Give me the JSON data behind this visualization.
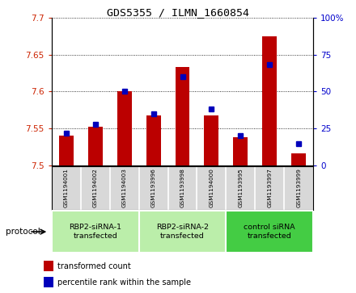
{
  "title": "GDS5355 / ILMN_1660854",
  "samples": [
    "GSM1194001",
    "GSM1194002",
    "GSM1194003",
    "GSM1193996",
    "GSM1193998",
    "GSM1194000",
    "GSM1193995",
    "GSM1193997",
    "GSM1193999"
  ],
  "red_values": [
    7.541,
    7.553,
    7.601,
    7.568,
    7.633,
    7.568,
    7.538,
    7.675,
    7.516
  ],
  "blue_values_pct": [
    22,
    28,
    50,
    35,
    60,
    38,
    20,
    68,
    15
  ],
  "ylim_left": [
    7.5,
    7.7
  ],
  "ylim_right": [
    0,
    100
  ],
  "yticks_left": [
    7.5,
    7.55,
    7.6,
    7.65,
    7.7
  ],
  "ytick_labels_left": [
    "7.5",
    "7.55",
    "7.6",
    "7.65",
    "7.7"
  ],
  "yticks_right": [
    0,
    25,
    50,
    75,
    100
  ],
  "ytick_labels_right": [
    "0",
    "25",
    "50",
    "75",
    "100%"
  ],
  "group_boundaries": [
    {
      "start": 0,
      "end": 2,
      "label": "RBP2-siRNA-1\ntransfected",
      "color": "#bbeeaa"
    },
    {
      "start": 3,
      "end": 5,
      "label": "RBP2-siRNA-2\ntransfected",
      "color": "#bbeeaa"
    },
    {
      "start": 6,
      "end": 8,
      "label": "control siRNA\ntransfected",
      "color": "#44cc44"
    }
  ],
  "protocol_label": "protocol",
  "legend_red": "transformed count",
  "legend_blue": "percentile rank within the sample",
  "bar_color": "#bb0000",
  "dot_color": "#0000bb",
  "bar_bottom": 7.5,
  "bar_width": 0.5,
  "dot_size": 22,
  "sample_band_color": "#d8d8d8",
  "plot_bg": "#ffffff",
  "tick_color_left": "#cc2200",
  "tick_color_right": "#0000cc"
}
